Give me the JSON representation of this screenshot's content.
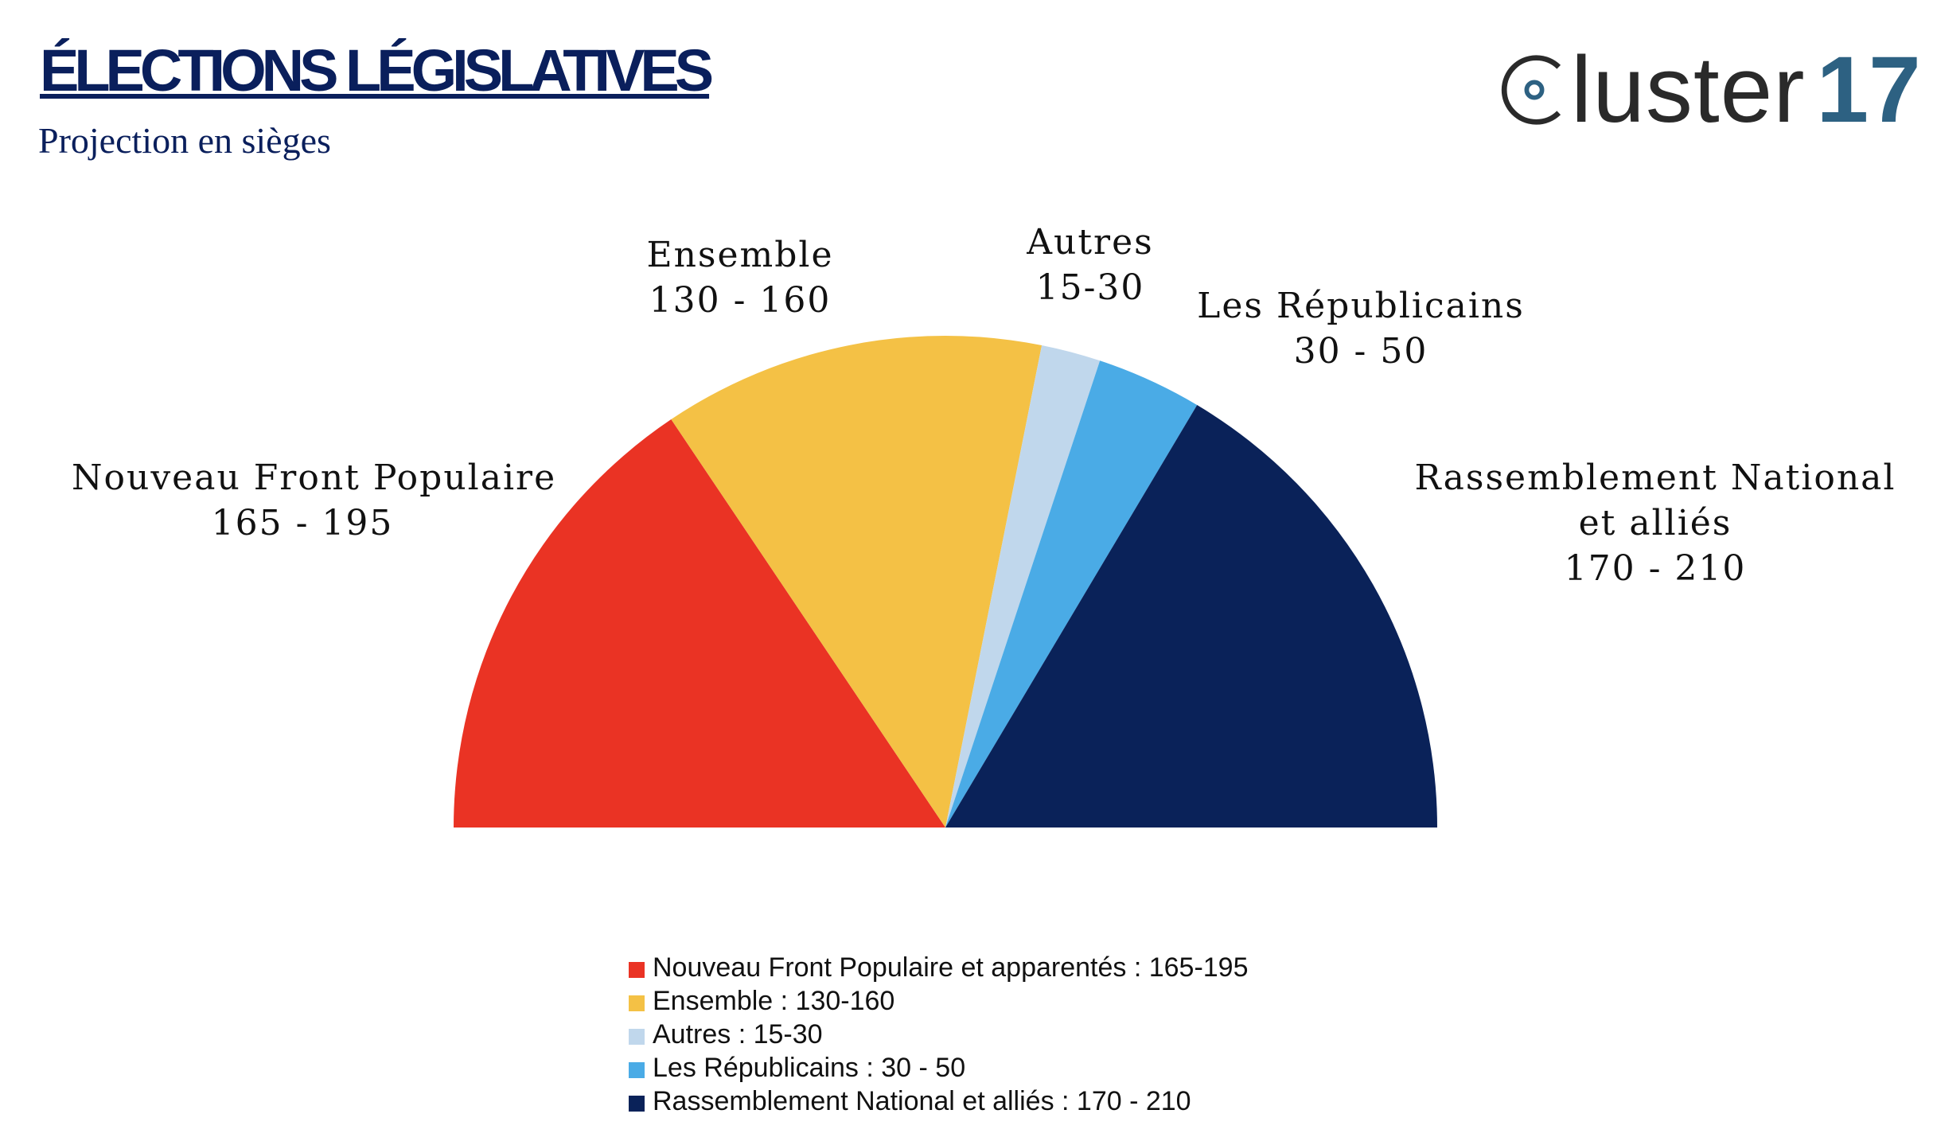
{
  "header": {
    "title": "ÉLECTIONS LÉGISLATIVES",
    "subtitle": "Projection en sièges"
  },
  "logo": {
    "text": "luster",
    "number": "17",
    "icon": "cluster-c-logo-icon",
    "colors": {
      "text": "#2a2a2a",
      "number": "#2d6182"
    }
  },
  "chart_data": {
    "type": "pie",
    "variant": "half-donut (hemicycle), no hole",
    "title": "ÉLECTIONS LÉGISLATIVES",
    "subtitle": "Projection en sièges",
    "slices": [
      {
        "name": "Nouveau Front Populaire",
        "range_text": "165 - 195",
        "low": 165,
        "high": 195,
        "value": 180,
        "color": "#ea3324",
        "legend": "Nouveau Front Populaire et apparentés : 165-195"
      },
      {
        "name": "Ensemble",
        "range_text": "130 - 160",
        "low": 130,
        "high": 160,
        "value": 145,
        "color": "#f4c145",
        "legend": "Ensemble : 130-160"
      },
      {
        "name": "Autres",
        "range_text": "15-30",
        "low": 15,
        "high": 30,
        "value": 22.5,
        "color": "#c0d7ec",
        "legend": "Autres : 15-30"
      },
      {
        "name": "Les Républicains",
        "range_text": "30 - 50",
        "low": 30,
        "high": 50,
        "value": 40,
        "color": "#4aabe6",
        "legend": "Les Républicains : 30 - 50"
      },
      {
        "name": "Rassemblement National et alliés",
        "range_text": "170 - 210",
        "low": 170,
        "high": 210,
        "value": 190,
        "color": "#0a2259",
        "legend": "Rassemblement National et alliés : 170 - 210"
      }
    ],
    "legend_placement": "bottom-center"
  }
}
